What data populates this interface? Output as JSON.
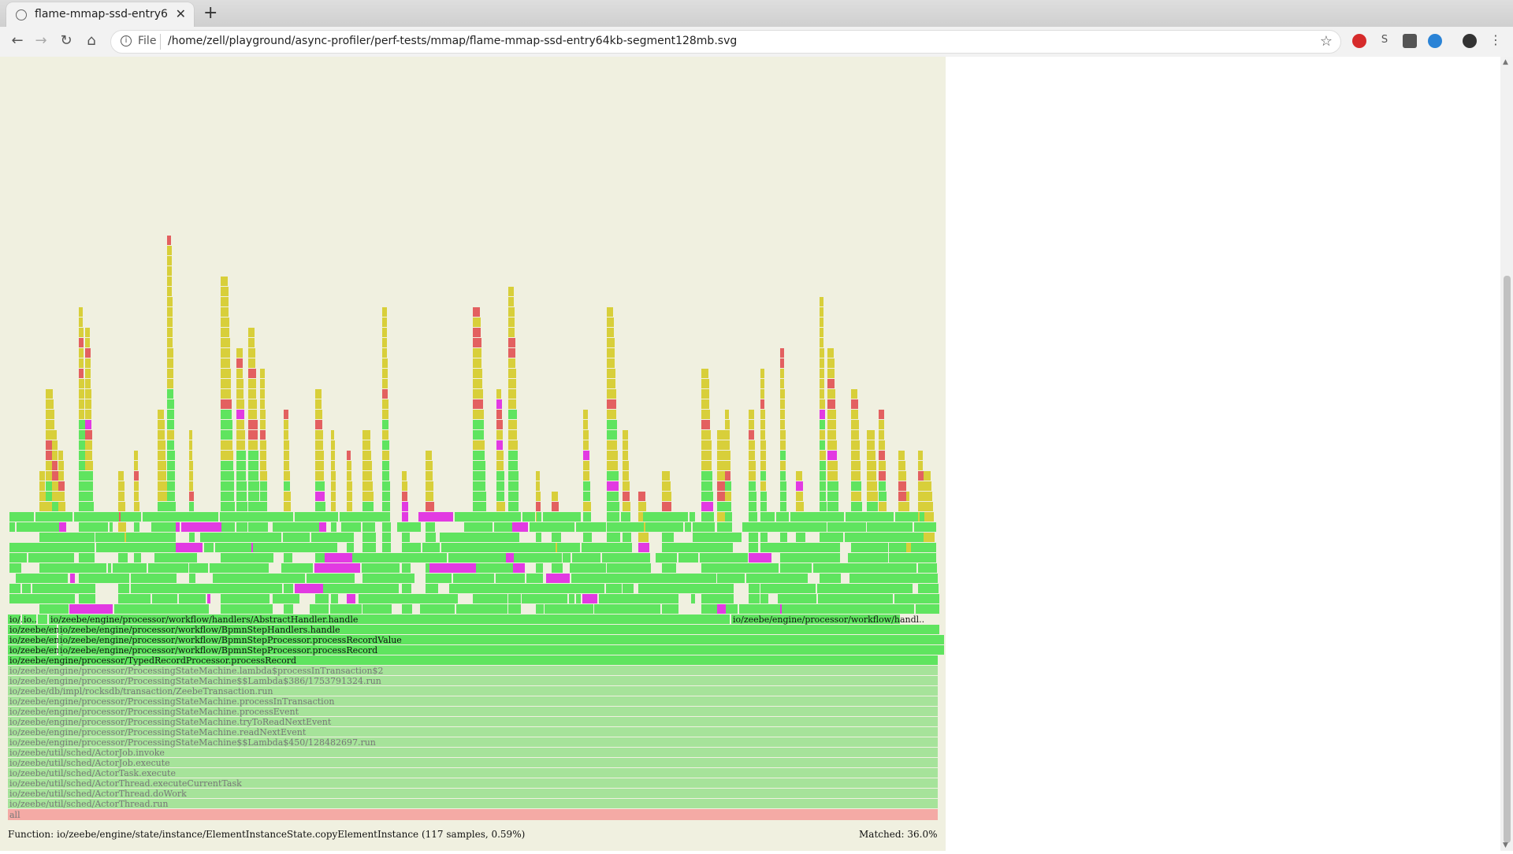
{
  "browser": {
    "tab_title": "flame-mmap-ssd-entry6",
    "tab_close": "✕",
    "new_tab": "+",
    "url_scheme": "File",
    "url": "/home/zell/playground/async-profiler/perf-tests/mmap/flame-mmap-ssd-entry64kb-segment128mb.svg",
    "profile_letter": "S"
  },
  "flamegraph": {
    "status_function": "Function: io/zeebe/engine/state/instance/ElementInstanceState.copyElementInstance (117 samples, 0.59%)",
    "status_matched": "Matched: 36.0%",
    "root_label": "all",
    "stack_frames": [
      "io/zeebe/util/sched/ActorThread.run",
      "io/zeebe/util/sched/ActorThread.doWork",
      "io/zeebe/util/sched/ActorThread.executeCurrentTask",
      "io/zeebe/util/sched/ActorTask.execute",
      "io/zeebe/util/sched/ActorJob.execute",
      "io/zeebe/util/sched/ActorJob.invoke",
      "io/zeebe/engine/processor/ProcessingStateMachine$$Lambda$450/128482697.run",
      "io/zeebe/engine/processor/ProcessingStateMachine.readNextEvent",
      "io/zeebe/engine/processor/ProcessingStateMachine.tryToReadNextEvent",
      "io/zeebe/engine/processor/ProcessingStateMachine.processEvent",
      "io/zeebe/engine/processor/ProcessingStateMachine.processInTransaction",
      "io/zeebe/db/impl/rocksdb/transaction/ZeebeTransaction.run",
      "io/zeebe/engine/processor/ProcessingStateMachine$$Lambda$386/1753791324.run",
      "io/zeebe/engine/processor/ProcessingStateMachine.lambda$processInTransaction$2",
      "io/zeebe/engine/processor/TypedRecordProcessor.processRecord"
    ],
    "row_frames": [
      [
        {
          "t": "io/zeebe/eng..",
          "w": 64
        },
        {
          "t": "io/zeebe/engine/processor/workflow/BpmnStepProcessor.processRecord",
          "w": 1126
        }
      ],
      [
        {
          "t": "io/zeebe/eng..",
          "w": 64
        },
        {
          "t": "io/zeebe/engine/processor/workflow/BpmnStepProcessor.processRecordValue",
          "w": 1126
        }
      ],
      [
        {
          "t": "io/zeebe/eng..",
          "w": 64
        },
        {
          "t": "io/zeebe/engine/processor/workflow/BpmnStepHandlers.handle",
          "w": 1120
        }
      ],
      [
        {
          "t": "io/..",
          "w": 18
        },
        {
          "t": "io..",
          "w": 20
        },
        {
          "t": "",
          "w": 14
        },
        {
          "t": "io/zeebe/engine/processor/workflow/handlers/AbstractHandler.handle",
          "w": 866
        },
        {
          "t": "io/zeebe/engine/processor/workflow/handl..",
          "w": 216
        }
      ]
    ],
    "colors": {
      "root": "#f4aaa5",
      "stack_grey": "#a6e39a",
      "top_green": "#5fe45f",
      "highlight": "#e23ae2",
      "yellow": "#d8cf3a",
      "red": "#e36060",
      "bg": "#f0f0e0"
    }
  }
}
